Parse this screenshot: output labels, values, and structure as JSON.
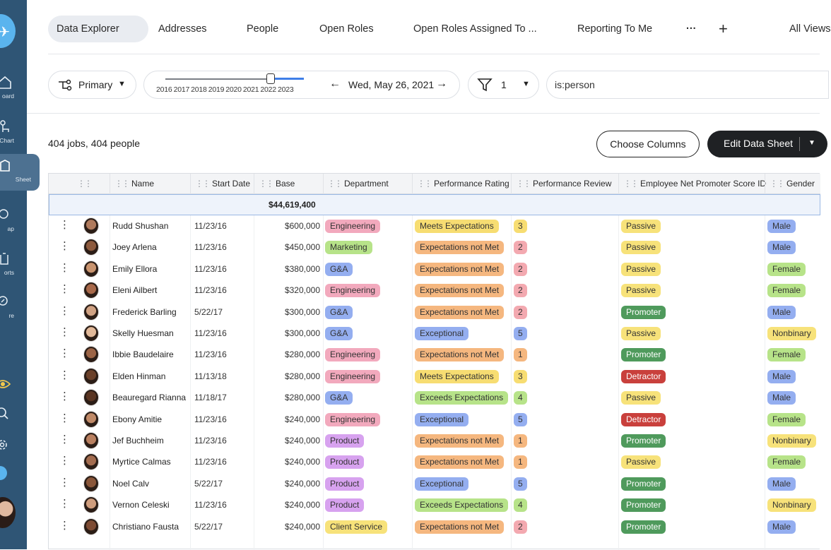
{
  "sidebar": {
    "items": [
      {
        "label": "oard",
        "icon": "home-icon"
      },
      {
        "label": "Chart",
        "icon": "org-chart-icon"
      },
      {
        "label": "Sheet",
        "icon": "sheet-icon"
      },
      {
        "label": "ap",
        "icon": "map-icon"
      },
      {
        "label": "orts",
        "icon": "reports-icon"
      },
      {
        "label": "re",
        "icon": "explore-icon"
      }
    ]
  },
  "tabs": [
    {
      "label": "Data Explorer",
      "active": true
    },
    {
      "label": "Addresses"
    },
    {
      "label": "People"
    },
    {
      "label": "Open Roles"
    },
    {
      "label": "Open Roles Assigned To ..."
    },
    {
      "label": "Reporting To Me"
    },
    {
      "label": "···"
    },
    {
      "label": "+"
    },
    {
      "label": "All Views"
    }
  ],
  "toolbar": {
    "primary_label": "Primary",
    "years": [
      "2016",
      "2017",
      "2018",
      "2019",
      "2020",
      "2021",
      "2022",
      "2023"
    ],
    "timeline_position": 0.66,
    "date": "Wed, May 26, 2021",
    "filter_count": "1",
    "search_value": "is:person"
  },
  "summary": "404 jobs, 404 people",
  "buttons": {
    "choose_columns": "Choose Columns",
    "edit_data_sheet": "Edit Data Sheet"
  },
  "columns": [
    "Name",
    "Start Date",
    "Base",
    "Department",
    "Performance Rating",
    "Performance Review",
    "Employee Net Promoter Score ID",
    "Gender"
  ],
  "total_base": "$44,619,400",
  "colors": {
    "Engineering": "#f2a9bd",
    "Marketing": "#b7e389",
    "G&A": "#94aef0",
    "Product": "#d7a2ef",
    "Client Service": "#f7e27a",
    "Meets Expectations": "#f7dd72",
    "Expectations not Met": "#f5b77f",
    "Exceptional": "#94aef0",
    "Exceeds Expectations": "#b7e389",
    "Passive": "#f7e27a",
    "Promoter": "#4f9a5c",
    "Detractor": "#c9403c",
    "Male": "#94aef0",
    "Female": "#b7e389",
    "Nonbinary": "#f7e27a",
    "review_1": "#f5b77f",
    "review_2": "#f3a9b0",
    "review_3": "#f7dd72",
    "review_4": "#b7e389",
    "review_5": "#94aef0"
  },
  "rows": [
    {
      "name": "Rudd Shushan",
      "start": "11/23/16",
      "base": "$600,000",
      "dept": "Engineering",
      "rating": "Meets Expectations",
      "review": "3",
      "enps": "Passive",
      "gender": "Male"
    },
    {
      "name": "Joey Arlena",
      "start": "11/23/16",
      "base": "$450,000",
      "dept": "Marketing",
      "rating": "Expectations not Met",
      "review": "2",
      "enps": "Passive",
      "gender": "Male"
    },
    {
      "name": "Emily Ellora",
      "start": "11/23/16",
      "base": "$380,000",
      "dept": "G&A",
      "rating": "Expectations not Met",
      "review": "2",
      "enps": "Passive",
      "gender": "Female"
    },
    {
      "name": "Eleni Ailbert",
      "start": "11/23/16",
      "base": "$320,000",
      "dept": "Engineering",
      "rating": "Expectations not Met",
      "review": "2",
      "enps": "Passive",
      "gender": "Female"
    },
    {
      "name": "Frederick Barling",
      "start": "5/22/17",
      "base": "$300,000",
      "dept": "G&A",
      "rating": "Expectations not Met",
      "review": "2",
      "enps": "Promoter",
      "gender": "Male"
    },
    {
      "name": "Skelly Huesman",
      "start": "11/23/16",
      "base": "$300,000",
      "dept": "G&A",
      "rating": "Exceptional",
      "review": "5",
      "enps": "Passive",
      "gender": "Nonbinary"
    },
    {
      "name": "Ibbie Baudelaire",
      "start": "11/23/16",
      "base": "$280,000",
      "dept": "Engineering",
      "rating": "Expectations not Met",
      "review": "1",
      "enps": "Promoter",
      "gender": "Female"
    },
    {
      "name": "Elden Hinman",
      "start": "11/13/18",
      "base": "$280,000",
      "dept": "Engineering",
      "rating": "Meets Expectations",
      "review": "3",
      "enps": "Detractor",
      "gender": "Male"
    },
    {
      "name": "Beauregard Rianna",
      "start": "11/18/17",
      "base": "$280,000",
      "dept": "G&A",
      "rating": "Exceeds Expectations",
      "review": "4",
      "enps": "Passive",
      "gender": "Male"
    },
    {
      "name": "Ebony Amitie",
      "start": "11/23/16",
      "base": "$240,000",
      "dept": "Engineering",
      "rating": "Exceptional",
      "review": "5",
      "enps": "Detractor",
      "gender": "Female"
    },
    {
      "name": "Jef Buchheim",
      "start": "11/23/16",
      "base": "$240,000",
      "dept": "Product",
      "rating": "Expectations not Met",
      "review": "1",
      "enps": "Promoter",
      "gender": "Nonbinary"
    },
    {
      "name": "Myrtice Calmas",
      "start": "11/23/16",
      "base": "$240,000",
      "dept": "Product",
      "rating": "Expectations not Met",
      "review": "1",
      "enps": "Passive",
      "gender": "Female"
    },
    {
      "name": "Noel Calv",
      "start": "5/22/17",
      "base": "$240,000",
      "dept": "Product",
      "rating": "Exceptional",
      "review": "5",
      "enps": "Promoter",
      "gender": "Male"
    },
    {
      "name": "Vernon Celeski",
      "start": "11/23/16",
      "base": "$240,000",
      "dept": "Product",
      "rating": "Exceeds Expectations",
      "review": "4",
      "enps": "Promoter",
      "gender": "Nonbinary"
    },
    {
      "name": "Christiano Fausta",
      "start": "5/22/17",
      "base": "$240,000",
      "dept": "Client Service",
      "rating": "Expectations not Met",
      "review": "2",
      "enps": "Promoter",
      "gender": "Male"
    }
  ]
}
